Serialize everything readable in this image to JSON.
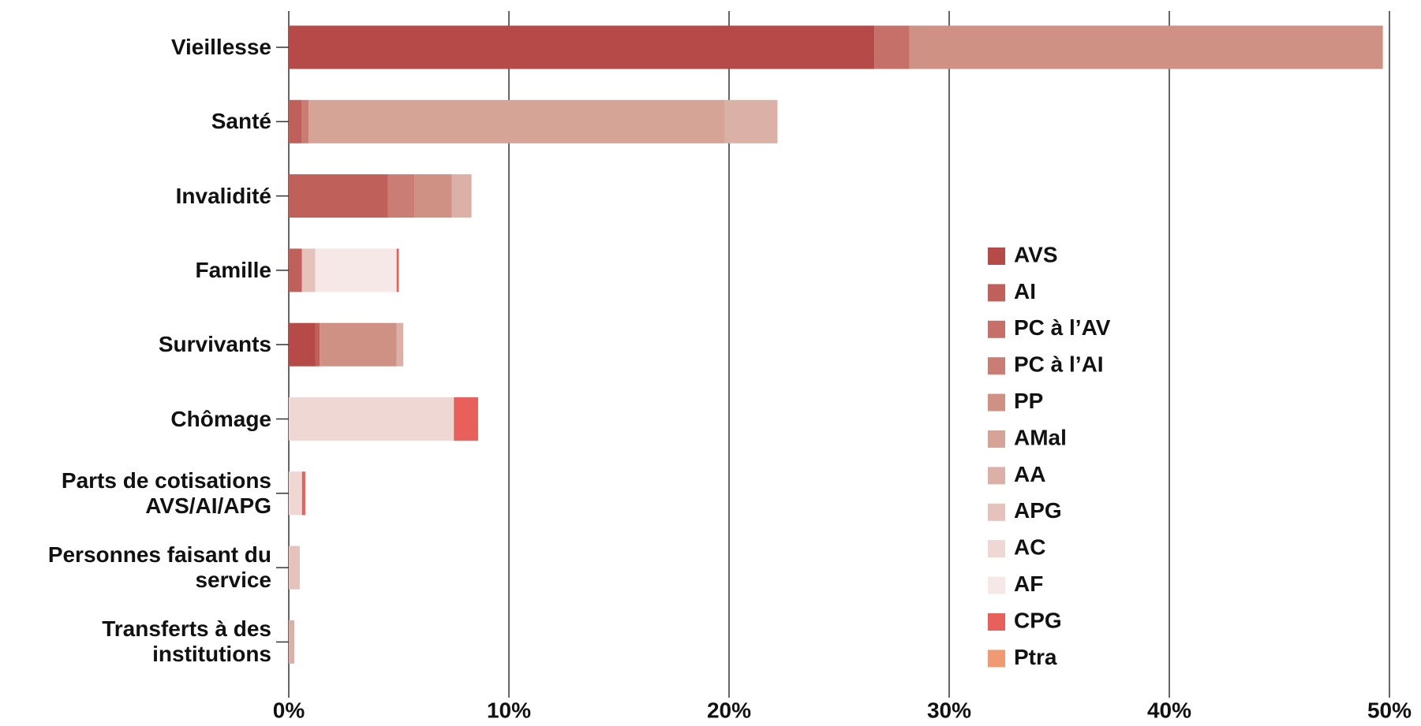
{
  "chart_data": {
    "type": "stacked-bar-horizontal",
    "categories": [
      "Vieillesse",
      "Santé",
      "Invalidité",
      "Famille",
      "Survivants",
      "Chômage",
      "Parts de cotisations AVS/AI/APG",
      "Personnes faisant du service",
      "Transferts à des institutions"
    ],
    "series": [
      {
        "name": "AVS",
        "color": "#b54a48",
        "values": [
          26.6,
          null,
          null,
          null,
          1.2,
          null,
          null,
          null,
          null
        ]
      },
      {
        "name": "AI",
        "color": "#c0605a",
        "values": [
          null,
          0.6,
          4.5,
          0.6,
          0.2,
          null,
          null,
          null,
          null
        ]
      },
      {
        "name": "PC à l’AV",
        "color": "#c6706a",
        "values": [
          1.6,
          null,
          null,
          null,
          null,
          null,
          null,
          null,
          null
        ]
      },
      {
        "name": "PC à l’AI",
        "color": "#c97d75",
        "values": [
          null,
          0.3,
          1.2,
          null,
          null,
          null,
          null,
          null,
          null
        ]
      },
      {
        "name": "PP",
        "color": "#d09185",
        "values": [
          21.5,
          null,
          1.7,
          null,
          3.5,
          null,
          null,
          null,
          null
        ]
      },
      {
        "name": "AMal",
        "color": "#d5a496",
        "values": [
          null,
          18.9,
          null,
          null,
          null,
          null,
          null,
          null,
          null
        ]
      },
      {
        "name": "AA",
        "color": "#dbb0a6",
        "values": [
          null,
          2.4,
          0.9,
          null,
          0.3,
          null,
          null,
          null,
          0.25
        ]
      },
      {
        "name": "APG",
        "color": "#e5c2bb",
        "values": [
          null,
          null,
          null,
          0.6,
          null,
          null,
          null,
          0.5,
          null
        ]
      },
      {
        "name": "AC",
        "color": "#efd7d3",
        "values": [
          null,
          null,
          null,
          null,
          null,
          7.5,
          0.6,
          null,
          null
        ]
      },
      {
        "name": "AF",
        "color": "#f6e8e6",
        "values": [
          null,
          null,
          null,
          3.7,
          null,
          null,
          null,
          null,
          null
        ]
      },
      {
        "name": "CPG",
        "color": "#e8605c",
        "values": [
          null,
          null,
          null,
          0.1,
          null,
          1.1,
          0.15,
          null,
          null
        ]
      },
      {
        "name": "Ptra",
        "color": "#f09a72",
        "values": [
          null,
          null,
          null,
          null,
          null,
          null,
          null,
          null,
          null
        ]
      }
    ],
    "xlim": [
      0,
      50
    ],
    "xticks": [
      {
        "value": 0,
        "label": "0%"
      },
      {
        "value": 10,
        "label": "10%"
      },
      {
        "value": 20,
        "label": "20%"
      },
      {
        "value": 30,
        "label": "30%"
      },
      {
        "value": 40,
        "label": "40%"
      },
      {
        "value": 50,
        "label": "50%"
      }
    ],
    "grid": true
  }
}
